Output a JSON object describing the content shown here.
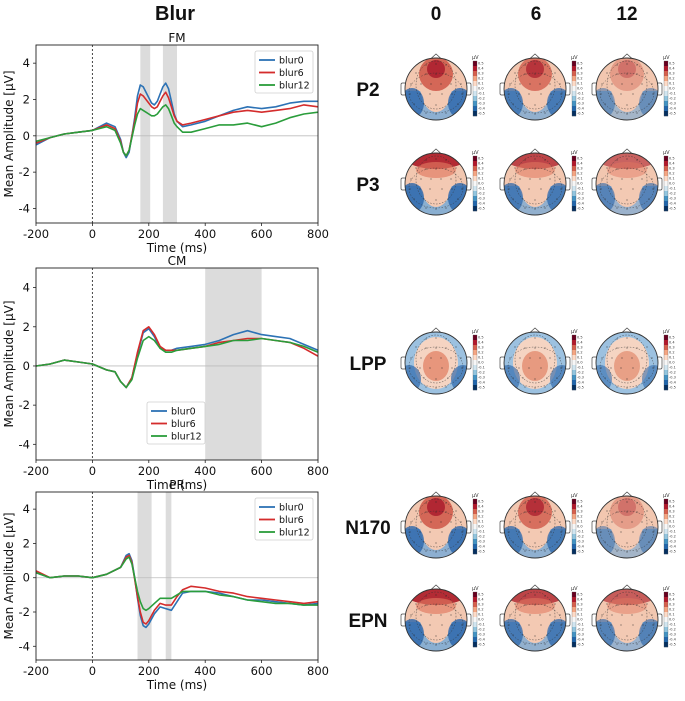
{
  "figure": {
    "title": "Blur"
  },
  "colors": {
    "blur0": "#2c72b5",
    "blur6": "#d42c2c",
    "blur12": "#2a9d3b",
    "shade": "#dcdcdc"
  },
  "chart_data": [
    {
      "type": "line",
      "title": "FM",
      "xlabel": "Time (ms)",
      "ylabel": "Mean Amplitude [µV]",
      "xlim": [
        -200,
        800
      ],
      "ylim": [
        -4.8,
        5.0
      ],
      "xticks": [
        "-200",
        "0",
        "200",
        "400",
        "600",
        "800"
      ],
      "yticks": [
        "-4",
        "-2",
        "0",
        "2",
        "4"
      ],
      "shaded": [
        [
          170,
          205
        ],
        [
          250,
          300
        ]
      ],
      "legend": [
        "blur0",
        "blur6",
        "blur12"
      ],
      "legend_loc": "top-right",
      "x": [
        -200,
        -150,
        -100,
        -50,
        0,
        50,
        80,
        100,
        110,
        120,
        130,
        140,
        150,
        160,
        170,
        180,
        190,
        200,
        210,
        220,
        230,
        240,
        250,
        260,
        270,
        280,
        290,
        300,
        320,
        350,
        400,
        450,
        500,
        550,
        600,
        650,
        700,
        750,
        800
      ],
      "series": [
        {
          "name": "blur0",
          "values": [
            -0.5,
            -0.1,
            0.1,
            0.2,
            0.3,
            0.7,
            0.5,
            -0.2,
            -0.9,
            -1.2,
            -0.9,
            0.0,
            1.0,
            2.2,
            2.8,
            2.7,
            2.4,
            2.1,
            1.8,
            1.7,
            1.9,
            2.3,
            2.7,
            2.9,
            2.6,
            1.9,
            1.2,
            0.8,
            0.5,
            0.6,
            0.8,
            1.1,
            1.4,
            1.6,
            1.5,
            1.6,
            1.8,
            1.9,
            1.9
          ]
        },
        {
          "name": "blur6",
          "values": [
            -0.4,
            -0.1,
            0.1,
            0.2,
            0.3,
            0.6,
            0.4,
            -0.3,
            -0.9,
            -1.1,
            -0.8,
            0.0,
            0.8,
            1.8,
            2.3,
            2.2,
            2.0,
            1.8,
            1.6,
            1.5,
            1.6,
            1.9,
            2.2,
            2.4,
            2.1,
            1.6,
            1.1,
            0.8,
            0.6,
            0.7,
            0.9,
            1.1,
            1.3,
            1.4,
            1.3,
            1.4,
            1.5,
            1.7,
            1.6
          ]
        },
        {
          "name": "blur12",
          "values": [
            -0.3,
            -0.1,
            0.1,
            0.2,
            0.3,
            0.5,
            0.3,
            -0.4,
            -0.9,
            -1.1,
            -0.8,
            -0.1,
            0.6,
            1.2,
            1.5,
            1.4,
            1.3,
            1.2,
            1.1,
            1.1,
            1.2,
            1.4,
            1.6,
            1.7,
            1.5,
            1.1,
            0.7,
            0.5,
            0.2,
            0.2,
            0.4,
            0.6,
            0.6,
            0.7,
            0.5,
            0.7,
            1.0,
            1.2,
            1.3
          ]
        }
      ]
    },
    {
      "type": "line",
      "title": "CM",
      "xlabel": "Time (ms)",
      "ylabel": "Mean Amplitude [µV]",
      "xlim": [
        -200,
        800
      ],
      "ylim": [
        -4.8,
        5.0
      ],
      "xticks": [
        "-200",
        "0",
        "200",
        "400",
        "600",
        "800"
      ],
      "yticks": [
        "-4",
        "-2",
        "0",
        "2",
        "4"
      ],
      "shaded": [
        [
          400,
          600
        ]
      ],
      "legend": [
        "blur0",
        "blur6",
        "blur12"
      ],
      "legend_loc": "bottom-center",
      "x": [
        -200,
        -150,
        -100,
        -50,
        0,
        50,
        80,
        100,
        120,
        140,
        160,
        180,
        200,
        220,
        240,
        260,
        280,
        300,
        350,
        400,
        450,
        500,
        550,
        600,
        650,
        700,
        750,
        800
      ],
      "series": [
        {
          "name": "blur0",
          "values": [
            0.0,
            0.1,
            0.3,
            0.2,
            0.1,
            -0.2,
            -0.3,
            -0.8,
            -1.1,
            -0.6,
            0.6,
            1.7,
            1.9,
            1.5,
            0.9,
            0.8,
            0.8,
            0.9,
            1.0,
            1.1,
            1.3,
            1.6,
            1.8,
            1.6,
            1.5,
            1.4,
            1.1,
            0.8
          ]
        },
        {
          "name": "blur6",
          "values": [
            0.0,
            0.1,
            0.3,
            0.2,
            0.1,
            -0.2,
            -0.3,
            -0.8,
            -1.1,
            -0.6,
            0.7,
            1.8,
            2.0,
            1.6,
            1.0,
            0.8,
            0.8,
            0.8,
            0.9,
            1.0,
            1.2,
            1.3,
            1.4,
            1.4,
            1.3,
            1.2,
            0.9,
            0.5
          ]
        },
        {
          "name": "blur12",
          "values": [
            0.0,
            0.1,
            0.3,
            0.2,
            0.1,
            -0.2,
            -0.3,
            -0.8,
            -1.1,
            -0.7,
            0.4,
            1.3,
            1.5,
            1.3,
            0.9,
            0.7,
            0.7,
            0.8,
            0.9,
            1.0,
            1.1,
            1.3,
            1.3,
            1.4,
            1.3,
            1.2,
            1.0,
            0.7
          ]
        }
      ]
    },
    {
      "type": "line",
      "title": "PR",
      "xlabel": "Time (ms)",
      "ylabel": "Mean Amplitude [µV]",
      "xlim": [
        -200,
        800
      ],
      "ylim": [
        -4.8,
        5.0
      ],
      "xticks": [
        "-200",
        "0",
        "200",
        "400",
        "600",
        "800"
      ],
      "yticks": [
        "-4",
        "-2",
        "0",
        "2",
        "4"
      ],
      "shaded": [
        [
          160,
          210
        ],
        [
          260,
          280
        ]
      ],
      "legend": [
        "blur0",
        "blur6",
        "blur12"
      ],
      "legend_loc": "top-right",
      "x": [
        -200,
        -150,
        -100,
        -50,
        0,
        50,
        100,
        120,
        130,
        140,
        150,
        160,
        170,
        180,
        190,
        200,
        220,
        240,
        260,
        280,
        300,
        320,
        350,
        400,
        450,
        500,
        550,
        600,
        650,
        700,
        750,
        800
      ],
      "series": [
        {
          "name": "blur0",
          "values": [
            0.3,
            0.0,
            0.1,
            0.1,
            0.0,
            0.2,
            0.6,
            1.3,
            1.4,
            1.0,
            0.0,
            -1.2,
            -2.2,
            -2.8,
            -2.9,
            -2.7,
            -2.1,
            -1.7,
            -1.8,
            -1.9,
            -1.4,
            -0.9,
            -0.8,
            -0.8,
            -0.9,
            -1.1,
            -1.3,
            -1.3,
            -1.4,
            -1.5,
            -1.6,
            -1.5
          ]
        },
        {
          "name": "blur6",
          "values": [
            0.4,
            0.0,
            0.1,
            0.1,
            0.0,
            0.2,
            0.6,
            1.2,
            1.3,
            0.9,
            -0.1,
            -1.1,
            -2.0,
            -2.6,
            -2.7,
            -2.5,
            -1.9,
            -1.5,
            -1.6,
            -1.6,
            -1.1,
            -0.7,
            -0.5,
            -0.6,
            -0.8,
            -0.9,
            -1.1,
            -1.2,
            -1.3,
            -1.4,
            -1.5,
            -1.4
          ]
        },
        {
          "name": "blur12",
          "values": [
            0.3,
            0.0,
            0.1,
            0.1,
            0.0,
            0.2,
            0.6,
            1.1,
            1.2,
            0.8,
            0.0,
            -0.8,
            -1.4,
            -1.8,
            -1.9,
            -1.8,
            -1.5,
            -1.2,
            -1.2,
            -1.2,
            -1.0,
            -0.8,
            -0.8,
            -0.8,
            -1.0,
            -1.1,
            -1.3,
            -1.4,
            -1.5,
            -1.5,
            -1.6,
            -1.6
          ]
        }
      ]
    }
  ],
  "topomaps": {
    "columns": [
      "0",
      "6",
      "12"
    ],
    "unit": "µV",
    "colorbar_ticks": [
      "0.5",
      "0.4",
      "0.3",
      "0.2",
      "0.1",
      "0.0",
      "-0.1",
      "-0.2",
      "-0.3",
      "-0.4",
      "-0.5"
    ],
    "rows": [
      {
        "label": "P2",
        "intensity": [
          0.95,
          0.8,
          0.3
        ],
        "pattern": "frontal"
      },
      {
        "label": "P3",
        "intensity": [
          1.0,
          0.8,
          0.55
        ],
        "pattern": "frontal-edge"
      },
      {
        "label": "LPP",
        "intensity": [
          0.7,
          0.6,
          0.45
        ],
        "pattern": "central"
      },
      {
        "label": "N170",
        "intensity": [
          0.95,
          0.85,
          0.3
        ],
        "pattern": "frontal"
      },
      {
        "label": "EPN",
        "intensity": [
          1.0,
          0.8,
          0.6
        ],
        "pattern": "frontal-edge"
      }
    ]
  }
}
